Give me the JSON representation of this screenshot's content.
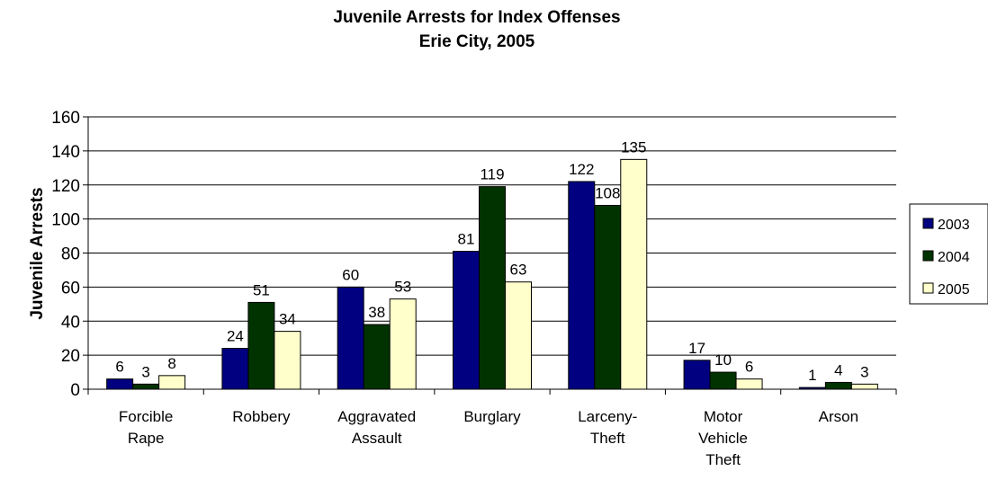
{
  "chart_data": {
    "type": "bar",
    "title": "Juvenile Arrests for Index Offenses",
    "subtitle": "Erie City, 2005",
    "xlabel": "",
    "ylabel": "Juvenile Arrests",
    "ylim": [
      0,
      160
    ],
    "yticks": [
      0,
      20,
      40,
      60,
      80,
      100,
      120,
      140,
      160
    ],
    "grid": true,
    "legend_position": "right",
    "categories": [
      [
        "Forcible",
        "Rape"
      ],
      [
        "Robbery"
      ],
      [
        "Aggravated",
        "Assault"
      ],
      [
        "Burglary"
      ],
      [
        "Larceny-",
        "Theft"
      ],
      [
        "Motor",
        "Vehicle",
        "Theft"
      ],
      [
        "Arson"
      ]
    ],
    "series": [
      {
        "name": "2003",
        "color": "#000080",
        "values": [
          6,
          24,
          60,
          81,
          122,
          17,
          1
        ]
      },
      {
        "name": "2004",
        "color": "#003300",
        "values": [
          3,
          51,
          38,
          119,
          108,
          10,
          4
        ]
      },
      {
        "name": "2005",
        "color": "#FFFFCC",
        "values": [
          8,
          34,
          53,
          63,
          135,
          6,
          3
        ]
      }
    ]
  }
}
